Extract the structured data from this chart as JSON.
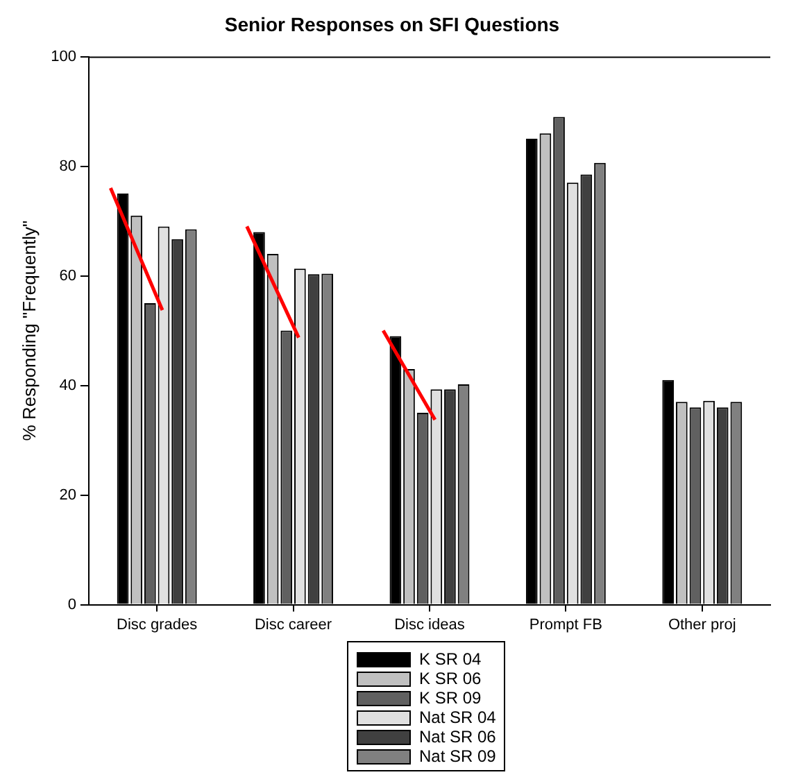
{
  "chart_data": {
    "type": "bar",
    "title": "Senior Responses on SFI Questions",
    "ylabel": "% Responding \"Frequently\"",
    "categories": [
      "Disc grades",
      "Disc career",
      "Disc ideas",
      "Prompt FB",
      "Other proj"
    ],
    "series": [
      {
        "name": "K SR 04",
        "color": "#000000",
        "values": [
          75,
          68,
          49,
          85,
          41
        ]
      },
      {
        "name": "K SR 06",
        "color": "#c0c0c0",
        "values": [
          71,
          64,
          43,
          86,
          37
        ]
      },
      {
        "name": "K SR 09",
        "color": "#606060",
        "values": [
          55,
          50,
          35,
          89,
          36
        ]
      },
      {
        "name": "Nat SR 04",
        "color": "#e0e0e0",
        "values": [
          69,
          61.3,
          39.3,
          77,
          37.2
        ]
      },
      {
        "name": "Nat SR 06",
        "color": "#404040",
        "values": [
          66.7,
          60.3,
          39.3,
          78.5,
          36
        ]
      },
      {
        "name": "Nat SR 09",
        "color": "#808080",
        "values": [
          68.5,
          60.4,
          40.2,
          80.6,
          37
        ]
      }
    ],
    "ylim": [
      0,
      100
    ],
    "yticks": [
      0,
      20,
      40,
      60,
      80,
      100
    ],
    "grid": false,
    "legend": "bottom"
  }
}
